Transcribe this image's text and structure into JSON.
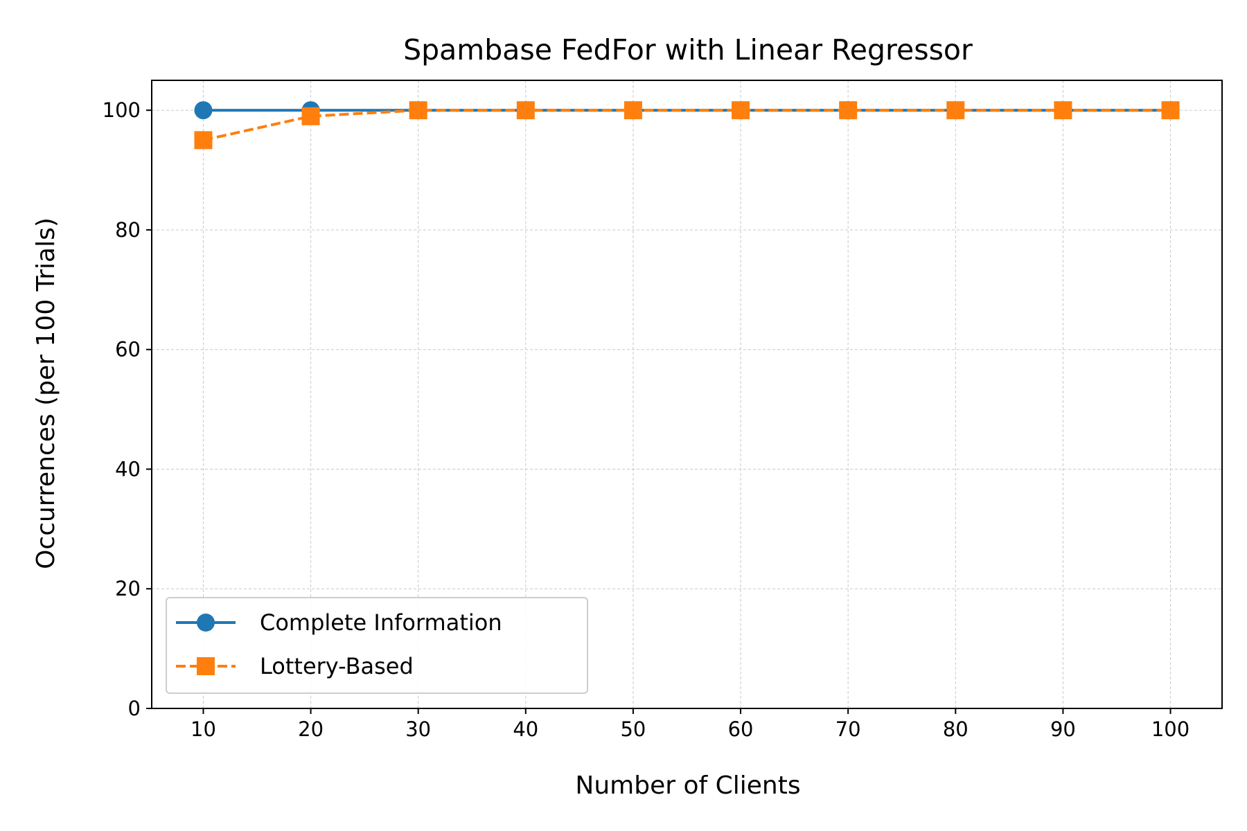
{
  "chart_data": {
    "type": "line",
    "title": "Spambase FedFor with Linear Regressor",
    "xlabel": "Number of Clients",
    "ylabel": "Occurrences (per 100 Trials)",
    "x": [
      10,
      20,
      30,
      40,
      50,
      60,
      70,
      80,
      90,
      100
    ],
    "xlim": [
      5.2,
      104.8
    ],
    "ylim": [
      0,
      105
    ],
    "xticks": [
      "10",
      "20",
      "30",
      "40",
      "50",
      "60",
      "70",
      "80",
      "90",
      "100"
    ],
    "yticks": [
      "0",
      "20",
      "40",
      "60",
      "80",
      "100"
    ],
    "grid": true,
    "legend_position": "lower-left",
    "series": [
      {
        "name": "Complete Information",
        "values": [
          100,
          100,
          100,
          100,
          100,
          100,
          100,
          100,
          100,
          100
        ],
        "color": "#1f77b4",
        "marker": "circle",
        "linestyle": "solid"
      },
      {
        "name": "Lottery-Based",
        "values": [
          95,
          99,
          100,
          100,
          100,
          100,
          100,
          100,
          100,
          100
        ],
        "color": "#ff7f0e",
        "marker": "square",
        "linestyle": "dashed"
      }
    ]
  }
}
